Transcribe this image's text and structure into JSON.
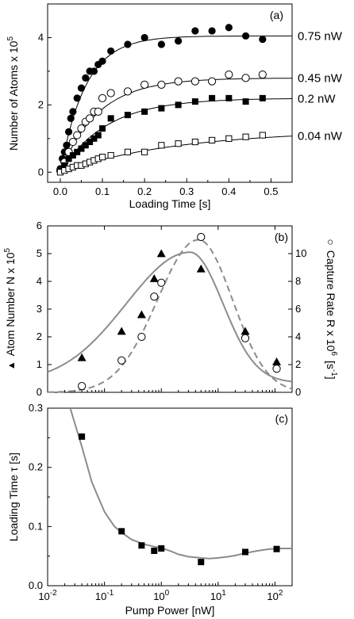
{
  "colors": {
    "ink": "#000000",
    "fit": "#8c8c8c",
    "background": "#ffffff"
  },
  "chart_data": [
    {
      "panel": "(a)",
      "type": "scatter",
      "xlabel": "Loading Time [s]",
      "ylabel": "Number of Atoms x 10",
      "ylabel_exponent": "5",
      "xlim": [
        -0.03,
        0.55
      ],
      "ylim": [
        -0.3,
        5.0
      ],
      "xticks": [
        0.0,
        0.1,
        0.2,
        0.3,
        0.4,
        0.5
      ],
      "xtick_labels": [
        "0.0",
        "0.1",
        "0.2",
        "0.3",
        "0.4",
        "0.5"
      ],
      "yticks": [
        0,
        2,
        4
      ],
      "ytick_labels": [
        "0",
        "2",
        "4"
      ],
      "grid": false,
      "series": [
        {
          "name": "0.75 nW",
          "marker": "filled-circle",
          "fit": {
            "amplitude": 4.05,
            "tau": 0.06
          },
          "x": [
            0.0,
            0.005,
            0.01,
            0.015,
            0.02,
            0.025,
            0.03,
            0.04,
            0.05,
            0.06,
            0.07,
            0.08,
            0.09,
            0.1,
            0.12,
            0.16,
            0.2,
            0.24,
            0.28,
            0.32,
            0.36,
            0.4,
            0.44,
            0.48
          ],
          "y": [
            0.1,
            0.4,
            0.6,
            0.8,
            1.2,
            1.6,
            1.8,
            2.2,
            2.5,
            2.8,
            3.0,
            3.0,
            3.2,
            3.3,
            3.6,
            3.8,
            4.0,
            3.8,
            3.9,
            4.2,
            4.2,
            4.3,
            4.05,
            3.95
          ]
        },
        {
          "name": "0.45 nW",
          "marker": "open-circle",
          "fit": {
            "amplitude": 2.8,
            "tau": 0.09
          },
          "x": [
            0.0,
            0.01,
            0.02,
            0.03,
            0.04,
            0.05,
            0.06,
            0.07,
            0.08,
            0.09,
            0.1,
            0.12,
            0.16,
            0.2,
            0.24,
            0.28,
            0.32,
            0.36,
            0.4,
            0.44,
            0.48
          ],
          "y": [
            0.05,
            0.3,
            0.6,
            0.9,
            1.1,
            1.3,
            1.5,
            1.6,
            1.8,
            1.8,
            2.2,
            2.35,
            2.4,
            2.6,
            2.6,
            2.7,
            2.7,
            2.7,
            2.9,
            2.8,
            2.9
          ]
        },
        {
          "name": "0.2 nW",
          "marker": "filled-square",
          "fit": {
            "amplitude": 2.2,
            "tau": 0.11
          },
          "x": [
            0.0,
            0.01,
            0.02,
            0.03,
            0.04,
            0.05,
            0.06,
            0.07,
            0.08,
            0.09,
            0.1,
            0.12,
            0.16,
            0.2,
            0.24,
            0.28,
            0.32,
            0.36,
            0.4,
            0.44,
            0.48
          ],
          "y": [
            0.05,
            0.2,
            0.4,
            0.5,
            0.6,
            0.7,
            0.8,
            0.9,
            1.0,
            1.1,
            1.3,
            1.6,
            1.7,
            1.8,
            1.9,
            2.0,
            2.1,
            2.2,
            2.2,
            2.1,
            2.2
          ]
        },
        {
          "name": "0.04 nW",
          "marker": "open-square",
          "fit": {
            "amplitude": 1.25,
            "tau": 0.28
          },
          "x": [
            0.0,
            0.01,
            0.02,
            0.03,
            0.04,
            0.05,
            0.06,
            0.07,
            0.08,
            0.09,
            0.1,
            0.12,
            0.16,
            0.2,
            0.24,
            0.28,
            0.32,
            0.36,
            0.4,
            0.44,
            0.48
          ],
          "y": [
            0.0,
            0.05,
            0.1,
            0.15,
            0.2,
            0.2,
            0.25,
            0.3,
            0.35,
            0.4,
            0.45,
            0.5,
            0.6,
            0.6,
            0.8,
            0.85,
            0.9,
            0.95,
            1.0,
            1.05,
            1.1
          ]
        }
      ]
    },
    {
      "panel": "(b)",
      "type": "scatter",
      "xscale": "log",
      "xlim": [
        0.01,
        200
      ],
      "ylabel_left": "Atom Number N x 10",
      "ylabel_left_exponent": "5",
      "ylabel_left_marker": "▲",
      "ylabel_right": "Capture Rate R x 10",
      "ylabel_right_exponent": "6",
      "ylabel_right_unit": "[s",
      "ylabel_right_unit_exponent": "-1",
      "ylabel_right_unit_close": "]",
      "ylabel_right_marker": "○",
      "ylim_left": [
        0,
        6
      ],
      "ylim_right": [
        0,
        12
      ],
      "yticks_left": [
        0,
        1,
        2,
        3,
        4,
        5,
        6
      ],
      "yticks_right": [
        0,
        2,
        4,
        6,
        8,
        10
      ],
      "grid": false,
      "series": [
        {
          "name": "Atom Number",
          "marker": "filled-triangle",
          "axis": "left",
          "x": [
            0.04,
            0.2,
            0.45,
            0.75,
            1.0,
            5.0,
            30.0,
            107.0
          ],
          "y": [
            1.25,
            2.2,
            2.8,
            4.1,
            5.0,
            4.45,
            2.2,
            1.1
          ]
        },
        {
          "name": "Capture Rate",
          "marker": "open-circle",
          "axis": "right",
          "x": [
            0.04,
            0.2,
            0.45,
            0.75,
            1.0,
            5.0,
            30.0,
            107.0
          ],
          "y": [
            0.45,
            2.3,
            4.0,
            6.9,
            7.9,
            11.2,
            3.9,
            1.7
          ]
        }
      ],
      "fits": [
        {
          "axis": "left",
          "style": "solid",
          "peak_x": 3.2,
          "peak_y": 5.05,
          "width_left": 1.12,
          "width_right": 0.58,
          "baseline": 0.35
        },
        {
          "axis": "right",
          "style": "dashed",
          "peak_x": 4.5,
          "peak_y": 11.0,
          "width_left": 0.72,
          "width_right": 0.6,
          "baseline": 0.0
        }
      ]
    },
    {
      "panel": "(c)",
      "type": "scatter",
      "xscale": "log",
      "xlabel": "Pump Power [nW]",
      "ylabel": "Loading Time τ [s]",
      "xlim": [
        0.01,
        200
      ],
      "ylim": [
        0.0,
        0.3
      ],
      "yticks": [
        0.0,
        0.1,
        0.2,
        0.3
      ],
      "ytick_labels": [
        "0.0",
        "0.1",
        "0.2",
        "0.3"
      ],
      "xtick_bases": [
        "10",
        "10",
        "10",
        "10",
        "10"
      ],
      "xtick_exponents": [
        "-2",
        "-1",
        "0",
        "1",
        "2"
      ],
      "grid": false,
      "series": [
        {
          "name": "Loading Time",
          "marker": "filled-square",
          "x": [
            0.04,
            0.2,
            0.45,
            0.75,
            1.0,
            5.0,
            30.0,
            107.0
          ],
          "y": [
            0.252,
            0.092,
            0.068,
            0.059,
            0.063,
            0.04,
            0.057,
            0.062
          ]
        }
      ],
      "fit_curve": {
        "style": "solid",
        "x": [
          0.025,
          0.04,
          0.06,
          0.1,
          0.15,
          0.2,
          0.3,
          0.5,
          0.75,
          1.0,
          1.5,
          2.0,
          3.0,
          5.0,
          7.0,
          10.0,
          15.0,
          20.0,
          30.0,
          50.0,
          80.0,
          120.0,
          200.0
        ],
        "y": [
          0.32,
          0.235,
          0.175,
          0.125,
          0.1,
          0.09,
          0.078,
          0.07,
          0.066,
          0.064,
          0.058,
          0.053,
          0.049,
          0.047,
          0.046,
          0.047,
          0.049,
          0.051,
          0.055,
          0.059,
          0.062,
          0.063,
          0.063
        ]
      }
    }
  ]
}
